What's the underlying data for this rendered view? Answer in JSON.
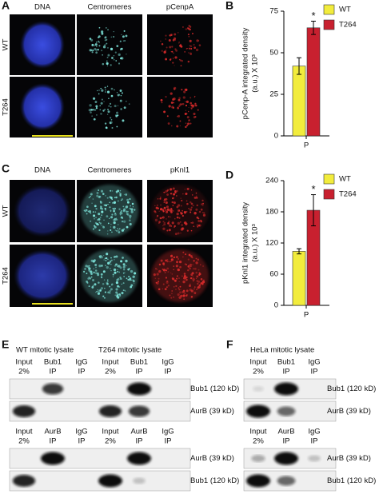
{
  "figure": {
    "A": {
      "label": "A",
      "columns": [
        "DNA",
        "Centromeres",
        "pCenpA"
      ],
      "rows": [
        "WT",
        "T264"
      ]
    },
    "C": {
      "label": "C",
      "columns": [
        "DNA",
        "Centromeres",
        "pKnl1"
      ],
      "rows": [
        "WT",
        "T264"
      ]
    },
    "E": {
      "label": "E",
      "lysates": [
        "WT mitotic lysate",
        "T264 mitotic lysate"
      ],
      "blots": [
        {
          "lanes": [
            [
              "Input",
              "2%"
            ],
            [
              "Bub1",
              "IP"
            ],
            [
              "IgG",
              "IP"
            ]
          ],
          "bands": [
            "Bub1 (120 kD)",
            "AurB (39 kD)"
          ]
        },
        {
          "lanes": [
            [
              "Input",
              "2%"
            ],
            [
              "AurB",
              "IP"
            ],
            [
              "IgG",
              "IP"
            ]
          ],
          "bands": [
            "AurB (39 kD)",
            "Bub1 (120 kD)"
          ]
        }
      ]
    },
    "F": {
      "label": "F",
      "lysates": [
        "HeLa mitotic lysate"
      ],
      "blots": [
        {
          "lanes": [
            [
              "Input",
              "2%"
            ],
            [
              "Bub1",
              "IP"
            ],
            [
              "IgG",
              "IP"
            ]
          ],
          "bands": [
            "Bub1 (120 kD)",
            "AurB (39 kD)"
          ]
        },
        {
          "lanes": [
            [
              "Input",
              "2%"
            ],
            [
              "AurB",
              "IP"
            ],
            [
              "IgG",
              "IP"
            ]
          ],
          "bands": [
            "AurB (39 kD)",
            "Bub1 (120 kD)"
          ]
        }
      ]
    }
  },
  "chart_data": [
    {
      "type": "bar",
      "panel_label": "B",
      "ylabel": [
        "pCenp-A integrated density",
        "(a.u.) X 10³"
      ],
      "categories": [
        "P"
      ],
      "series": [
        {
          "name": "WT",
          "color": "#f2ec3c",
          "values": [
            42
          ],
          "errors": [
            5
          ]
        },
        {
          "name": "T264",
          "color": "#c8202f",
          "values": [
            65
          ],
          "errors": [
            4
          ]
        }
      ],
      "ylim": [
        0,
        75
      ],
      "yticks": [
        0,
        25,
        50,
        75
      ],
      "annotation": "*",
      "legend": "upper right"
    },
    {
      "type": "bar",
      "panel_label": "D",
      "ylabel": [
        "pKnl1 integrated density",
        "(a.u.) X 10³"
      ],
      "categories": [
        "P"
      ],
      "series": [
        {
          "name": "WT",
          "color": "#f2ec3c",
          "values": [
            104
          ],
          "errors": [
            5
          ]
        },
        {
          "name": "T264",
          "color": "#c8202f",
          "values": [
            183
          ],
          "errors": [
            30
          ]
        }
      ],
      "ylim": [
        0,
        240
      ],
      "yticks": [
        0,
        60,
        120,
        180,
        240
      ],
      "annotation": "*",
      "legend": "upper right"
    }
  ]
}
